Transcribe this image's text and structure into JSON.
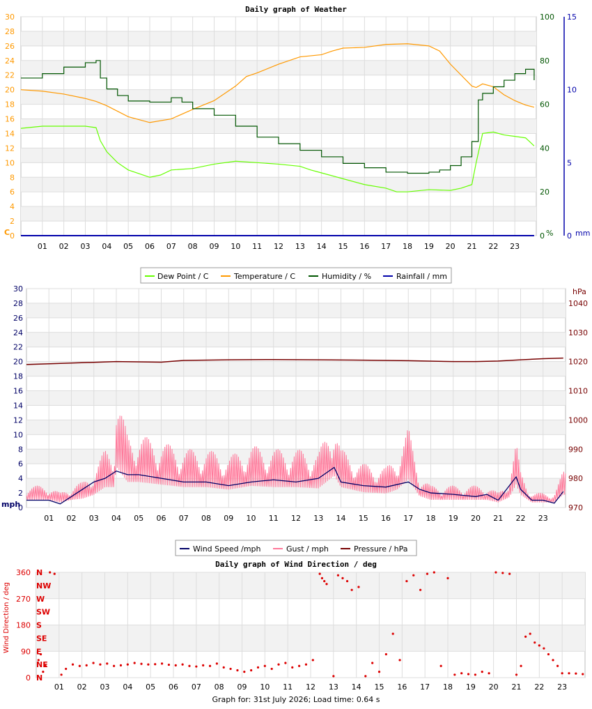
{
  "charts_meta": {
    "footer_label": "Graph for:",
    "footer_date": "31st July 2026",
    "footer_load_label": "Load time:",
    "footer_load_value": "0.64 s"
  },
  "colors": {
    "dew": "#66ff00",
    "temp": "#ff9900",
    "hum": "#005500",
    "rain": "#0000aa",
    "wind": "#000066",
    "gust": "#ff7799",
    "pres": "#770000",
    "dir": "#dd0000",
    "grid": "#dddddd",
    "band": "#f2f2f2"
  },
  "chart_data": [
    {
      "type": "line",
      "title": "Daily graph of Weather",
      "x_ticks": [
        "01",
        "02",
        "03",
        "04",
        "05",
        "06",
        "07",
        "08",
        "09",
        "10",
        "11",
        "12",
        "13",
        "14",
        "15",
        "16",
        "17",
        "18",
        "19",
        "20",
        "21",
        "22",
        "23"
      ],
      "x_range": [
        0,
        24
      ],
      "left_axis": {
        "unit": "C",
        "ticks": [
          0,
          2,
          4,
          6,
          8,
          10,
          12,
          14,
          16,
          18,
          20,
          22,
          24,
          26,
          28,
          30
        ],
        "range": [
          0,
          30
        ]
      },
      "right_axis_1": {
        "unit": "%",
        "ticks": [
          0,
          20,
          40,
          60,
          80,
          100
        ],
        "range": [
          0,
          100
        ]
      },
      "right_axis_2": {
        "unit": "mm",
        "ticks": [
          0,
          5,
          10,
          15
        ],
        "range": [
          0,
          15
        ]
      },
      "legend": [
        "Dew Point / C",
        "Temperature / C",
        "Humidity / %",
        "Rainfall / mm"
      ],
      "series": [
        {
          "name": "Dew Point / C",
          "axis": "left",
          "x": [
            0,
            1,
            2,
            3,
            3.5,
            3.7,
            4,
            4.5,
            5,
            5.5,
            6,
            6.5,
            7,
            8,
            9,
            10,
            11,
            12,
            13,
            13.5,
            14,
            15,
            16,
            17,
            17.5,
            18,
            19,
            20,
            20.5,
            21,
            21.2,
            21.5,
            22,
            22.5,
            23,
            23.5,
            23.9
          ],
          "y": [
            14.7,
            15,
            15,
            15,
            14.8,
            13,
            11.5,
            10,
            9,
            8.5,
            8,
            8.3,
            9,
            9.2,
            9.8,
            10.2,
            10,
            9.8,
            9.5,
            9,
            8.6,
            7.8,
            7,
            6.5,
            6,
            6,
            6.3,
            6.2,
            6.5,
            7,
            10,
            14,
            14.2,
            13.8,
            13.6,
            13.4,
            12.3
          ]
        },
        {
          "name": "Temperature / C",
          "axis": "left",
          "x": [
            0,
            1,
            2,
            3,
            3.5,
            4,
            5,
            6,
            7,
            8,
            9,
            10,
            10.5,
            11,
            12,
            13,
            14,
            14.5,
            15,
            16,
            17,
            18,
            19,
            19.5,
            20,
            20.5,
            21,
            21.2,
            21.5,
            22,
            22.5,
            23,
            23.5,
            23.9
          ],
          "y": [
            20,
            19.8,
            19.4,
            18.8,
            18.4,
            17.8,
            16.3,
            15.5,
            16,
            17.3,
            18.5,
            20.5,
            21.8,
            22.3,
            23.5,
            24.5,
            24.8,
            25.3,
            25.7,
            25.8,
            26.2,
            26.3,
            26,
            25.3,
            23.5,
            22,
            20.5,
            20.3,
            20.8,
            20.4,
            19.3,
            18.5,
            17.9,
            17.6
          ]
        },
        {
          "name": "Humidity / %",
          "axis": "right1",
          "x": [
            0,
            1,
            2,
            3,
            3.5,
            3.7,
            4,
            4.5,
            5,
            6,
            7,
            7.5,
            8,
            9,
            10,
            11,
            12,
            13,
            14,
            15,
            16,
            17,
            18,
            19,
            19.5,
            20,
            20.5,
            21,
            21.3,
            21.5,
            22,
            22.5,
            23,
            23.5,
            23.9
          ],
          "y": [
            72,
            74,
            77,
            79,
            80,
            72,
            67,
            64,
            61.5,
            61,
            63,
            61,
            58,
            55,
            50,
            45,
            42,
            39,
            36,
            33,
            31,
            29,
            28.5,
            29,
            30,
            32,
            36,
            43,
            62,
            65,
            68,
            71,
            74,
            76,
            71
          ]
        },
        {
          "name": "Rainfall / mm",
          "axis": "right2",
          "x": [
            0,
            23.9
          ],
          "y": [
            0,
            0
          ]
        }
      ]
    },
    {
      "type": "line",
      "title": "",
      "x_ticks": [
        "01",
        "02",
        "03",
        "04",
        "05",
        "06",
        "07",
        "08",
        "09",
        "10",
        "11",
        "12",
        "13",
        "14",
        "15",
        "16",
        "17",
        "18",
        "19",
        "20",
        "21",
        "22",
        "23"
      ],
      "x_range": [
        0,
        24
      ],
      "left_axis": {
        "unit": "mph",
        "ticks": [
          0,
          2,
          4,
          6,
          8,
          10,
          12,
          14,
          16,
          18,
          20,
          22,
          24,
          26,
          28,
          30
        ],
        "range": [
          0,
          30
        ]
      },
      "right_axis_1": {
        "unit": "hPa",
        "ticks": [
          970,
          980,
          990,
          1000,
          1010,
          1020,
          1030,
          1040
        ],
        "range": [
          970,
          1045
        ]
      },
      "legend": [
        "Wind Speed /mph",
        "Gust / mph",
        "Pressure / hPa"
      ],
      "series": [
        {
          "name": "Wind Speed /mph",
          "axis": "left",
          "x": [
            0,
            1,
            1.5,
            2,
            2.5,
            3,
            3.5,
            4,
            4.5,
            5,
            6,
            7,
            8,
            9,
            10,
            11,
            12,
            13,
            13.7,
            14,
            15,
            16,
            17,
            17.5,
            18,
            19,
            20,
            20.5,
            21,
            21.5,
            21.8,
            22,
            22.5,
            23,
            23.5,
            23.9
          ],
          "y": [
            1,
            1,
            0.5,
            1.5,
            2.5,
            3.5,
            4,
            5,
            4.5,
            4.5,
            4,
            3.5,
            3.5,
            3,
            3.5,
            3.8,
            3.5,
            4,
            5.5,
            3.5,
            3,
            2.8,
            3.5,
            2.5,
            2,
            1.8,
            1.5,
            1.8,
            1,
            3,
            4.2,
            2.5,
            1,
            1,
            0.6,
            2.2
          ]
        },
        {
          "name": "Gust / mph",
          "axis": "left",
          "x": [
            0,
            1,
            1.5,
            2,
            2.5,
            3,
            3.5,
            3.9,
            4,
            4.5,
            5,
            6,
            7,
            8,
            9,
            10,
            11,
            12,
            13,
            13.7,
            14,
            15,
            16,
            16.5,
            17,
            17.5,
            18,
            19,
            20,
            20.5,
            21,
            21.5,
            21.8,
            22,
            22.5,
            23,
            23.5,
            23.9
          ],
          "y": [
            3,
            3,
            2,
            3,
            3.5,
            5,
            8,
            8,
            16,
            10,
            10,
            9,
            8,
            8,
            7,
            8.5,
            8,
            8,
            7.5,
            12.5,
            8,
            6,
            5.5,
            7,
            11,
            4.5,
            3,
            3,
            3,
            3,
            2,
            4,
            9,
            5,
            2,
            2,
            2,
            5
          ]
        },
        {
          "name": "Pressure / hPa",
          "axis": "right1",
          "x": [
            0,
            2,
            4,
            6,
            7,
            9,
            11,
            13,
            15,
            17,
            19,
            20,
            21,
            22,
            23,
            23.9
          ],
          "y": [
            1019,
            1019.5,
            1020,
            1019.8,
            1020.4,
            1020.6,
            1020.7,
            1020.6,
            1020.5,
            1020.3,
            1020,
            1020,
            1020.2,
            1020.6,
            1021,
            1021.2
          ]
        }
      ]
    },
    {
      "type": "scatter",
      "title": "Daily graph of Wind Direction / deg",
      "ylabel": "Wind Direction / deg",
      "x_ticks": [
        "01",
        "02",
        "03",
        "04",
        "05",
        "06",
        "07",
        "08",
        "09",
        "10",
        "11",
        "12",
        "13",
        "14",
        "15",
        "16",
        "17",
        "18",
        "19",
        "20",
        "21",
        "22",
        "23"
      ],
      "x_range": [
        0,
        24
      ],
      "y_ticks": [
        0,
        90,
        180,
        270,
        360
      ],
      "y_range": [
        0,
        360
      ],
      "compass_labels": [
        "N",
        "NE",
        "E",
        "SE",
        "S",
        "SW",
        "W",
        "NW",
        "N"
      ],
      "series": [
        {
          "name": "",
          "x": [
            0.1,
            0.2,
            0.3,
            0.4,
            0.6,
            0.8,
            1.1,
            1.3,
            1.6,
            1.9,
            2.2,
            2.5,
            2.8,
            3.1,
            3.4,
            3.7,
            4.0,
            4.3,
            4.6,
            4.9,
            5.2,
            5.5,
            5.8,
            6.1,
            6.4,
            6.7,
            7.0,
            7.3,
            7.6,
            7.9,
            8.2,
            8.5,
            8.8,
            9.1,
            9.4,
            9.7,
            10.0,
            10.3,
            10.6,
            10.9,
            11.2,
            11.5,
            11.8,
            12.1,
            12.4,
            12.5,
            12.6,
            12.7,
            13.0,
            13.2,
            13.4,
            13.6,
            13.8,
            14.1,
            14.4,
            14.7,
            15.0,
            15.3,
            15.6,
            15.9,
            16.2,
            16.5,
            16.8,
            17.1,
            17.4,
            17.7,
            18.0,
            18.3,
            18.6,
            18.9,
            19.2,
            19.5,
            19.8,
            20.1,
            20.4,
            20.7,
            21.0,
            21.2,
            21.4,
            21.6,
            21.8,
            22.0,
            22.2,
            22.4,
            22.6,
            22.8,
            23.0,
            23.3,
            23.6,
            23.9
          ],
          "y": [
            60,
            80,
            20,
            40,
            360,
            355,
            10,
            30,
            45,
            40,
            42,
            50,
            45,
            48,
            40,
            42,
            45,
            50,
            47,
            45,
            46,
            48,
            44,
            42,
            45,
            40,
            38,
            42,
            40,
            48,
            35,
            30,
            25,
            20,
            25,
            35,
            40,
            30,
            45,
            50,
            35,
            40,
            45,
            60,
            355,
            340,
            330,
            320,
            5,
            350,
            340,
            330,
            300,
            310,
            5,
            50,
            20,
            80,
            150,
            60,
            330,
            350,
            300,
            355,
            360,
            40,
            340,
            10,
            15,
            12,
            10,
            20,
            15,
            360,
            358,
            355,
            10,
            40,
            140,
            150,
            120,
            110,
            100,
            80,
            60,
            40,
            15,
            15,
            14,
            12
          ]
        }
      ]
    }
  ]
}
